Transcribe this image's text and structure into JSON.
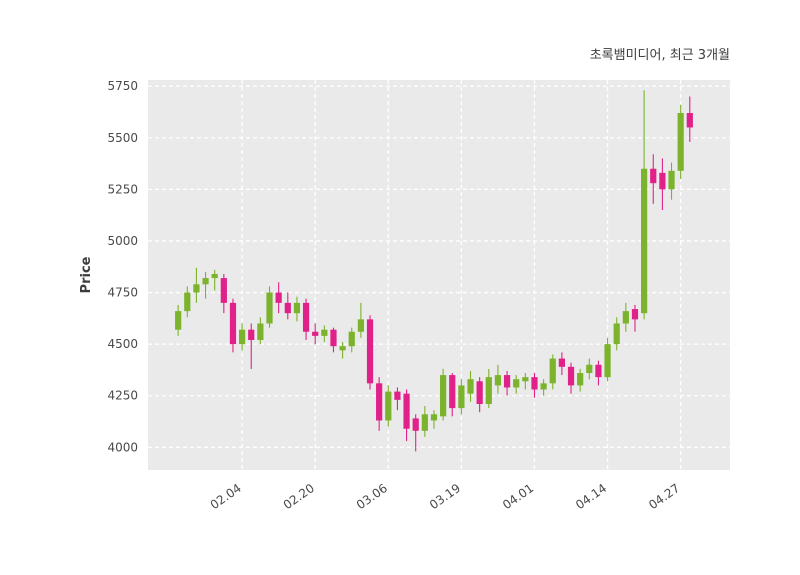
{
  "header": {
    "title": "초록뱀미디어, 최근 3개월"
  },
  "chart_data": {
    "type": "candlestick",
    "title": "초록뱀미디어, 최근 3개월",
    "ylabel": "Price",
    "xlabel": "",
    "ylim": [
      3890,
      5780
    ],
    "xlim": [
      -3.3,
      60.4
    ],
    "grid": true,
    "grid_style": "dashed-white-on-gray",
    "yticks": [
      4000,
      4250,
      4500,
      4750,
      5000,
      5250,
      5500,
      5750
    ],
    "xticks": [
      {
        "index": 7,
        "label": "02.04"
      },
      {
        "index": 15,
        "label": "02.20"
      },
      {
        "index": 23,
        "label": "03.06"
      },
      {
        "index": 31,
        "label": "03.19"
      },
      {
        "index": 39,
        "label": "04.01"
      },
      {
        "index": 47,
        "label": "04.14"
      },
      {
        "index": 55,
        "label": "04.27"
      }
    ],
    "colors": {
      "up": "#7cb32d",
      "down": "#e0218a",
      "plot_bg": "#eaeaea",
      "grid": "#ffffff",
      "text": "#4a4a4a"
    },
    "candle_format": "ohlc",
    "candles": [
      [
        4570,
        4690,
        4540,
        4660
      ],
      [
        4660,
        4780,
        4630,
        4750
      ],
      [
        4750,
        4870,
        4700,
        4790
      ],
      [
        4790,
        4850,
        4720,
        4820
      ],
      [
        4820,
        4860,
        4760,
        4840
      ],
      [
        4820,
        4840,
        4650,
        4700
      ],
      [
        4700,
        4720,
        4460,
        4500
      ],
      [
        4500,
        4600,
        4470,
        4570
      ],
      [
        4570,
        4600,
        4380,
        4520
      ],
      [
        4520,
        4630,
        4500,
        4600
      ],
      [
        4600,
        4780,
        4580,
        4750
      ],
      [
        4750,
        4800,
        4650,
        4700
      ],
      [
        4700,
        4750,
        4620,
        4650
      ],
      [
        4650,
        4730,
        4610,
        4700
      ],
      [
        4700,
        4720,
        4520,
        4560
      ],
      [
        4560,
        4600,
        4500,
        4540
      ],
      [
        4540,
        4590,
        4510,
        4570
      ],
      [
        4570,
        4580,
        4460,
        4490
      ],
      [
        4470,
        4510,
        4430,
        4490
      ],
      [
        4490,
        4580,
        4460,
        4560
      ],
      [
        4560,
        4700,
        4530,
        4620
      ],
      [
        4620,
        4640,
        4280,
        4310
      ],
      [
        4310,
        4340,
        4080,
        4130
      ],
      [
        4130,
        4300,
        4100,
        4270
      ],
      [
        4270,
        4290,
        4180,
        4230
      ],
      [
        4260,
        4280,
        4030,
        4090
      ],
      [
        4140,
        4160,
        3980,
        4080
      ],
      [
        4080,
        4200,
        4050,
        4160
      ],
      [
        4130,
        4180,
        4090,
        4160
      ],
      [
        4150,
        4380,
        4130,
        4350
      ],
      [
        4350,
        4360,
        4150,
        4190
      ],
      [
        4190,
        4330,
        4160,
        4300
      ],
      [
        4260,
        4370,
        4220,
        4330
      ],
      [
        4320,
        4340,
        4170,
        4210
      ],
      [
        4210,
        4380,
        4190,
        4340
      ],
      [
        4300,
        4400,
        4260,
        4350
      ],
      [
        4350,
        4370,
        4250,
        4290
      ],
      [
        4290,
        4350,
        4260,
        4330
      ],
      [
        4320,
        4360,
        4280,
        4340
      ],
      [
        4340,
        4360,
        4240,
        4280
      ],
      [
        4280,
        4330,
        4250,
        4310
      ],
      [
        4310,
        4450,
        4280,
        4430
      ],
      [
        4430,
        4460,
        4350,
        4390
      ],
      [
        4390,
        4410,
        4260,
        4300
      ],
      [
        4300,
        4380,
        4270,
        4360
      ],
      [
        4360,
        4430,
        4330,
        4400
      ],
      [
        4400,
        4420,
        4300,
        4340
      ],
      [
        4340,
        4530,
        4320,
        4500
      ],
      [
        4500,
        4630,
        4470,
        4600
      ],
      [
        4600,
        4700,
        4560,
        4660
      ],
      [
        4670,
        4690,
        4560,
        4620
      ],
      [
        4650,
        5730,
        4620,
        5350
      ],
      [
        5350,
        5420,
        5180,
        5280
      ],
      [
        5330,
        5400,
        5150,
        5250
      ],
      [
        5250,
        5380,
        5200,
        5340
      ],
      [
        5340,
        5660,
        5300,
        5620
      ],
      [
        5620,
        5700,
        5480,
        5550
      ]
    ]
  }
}
